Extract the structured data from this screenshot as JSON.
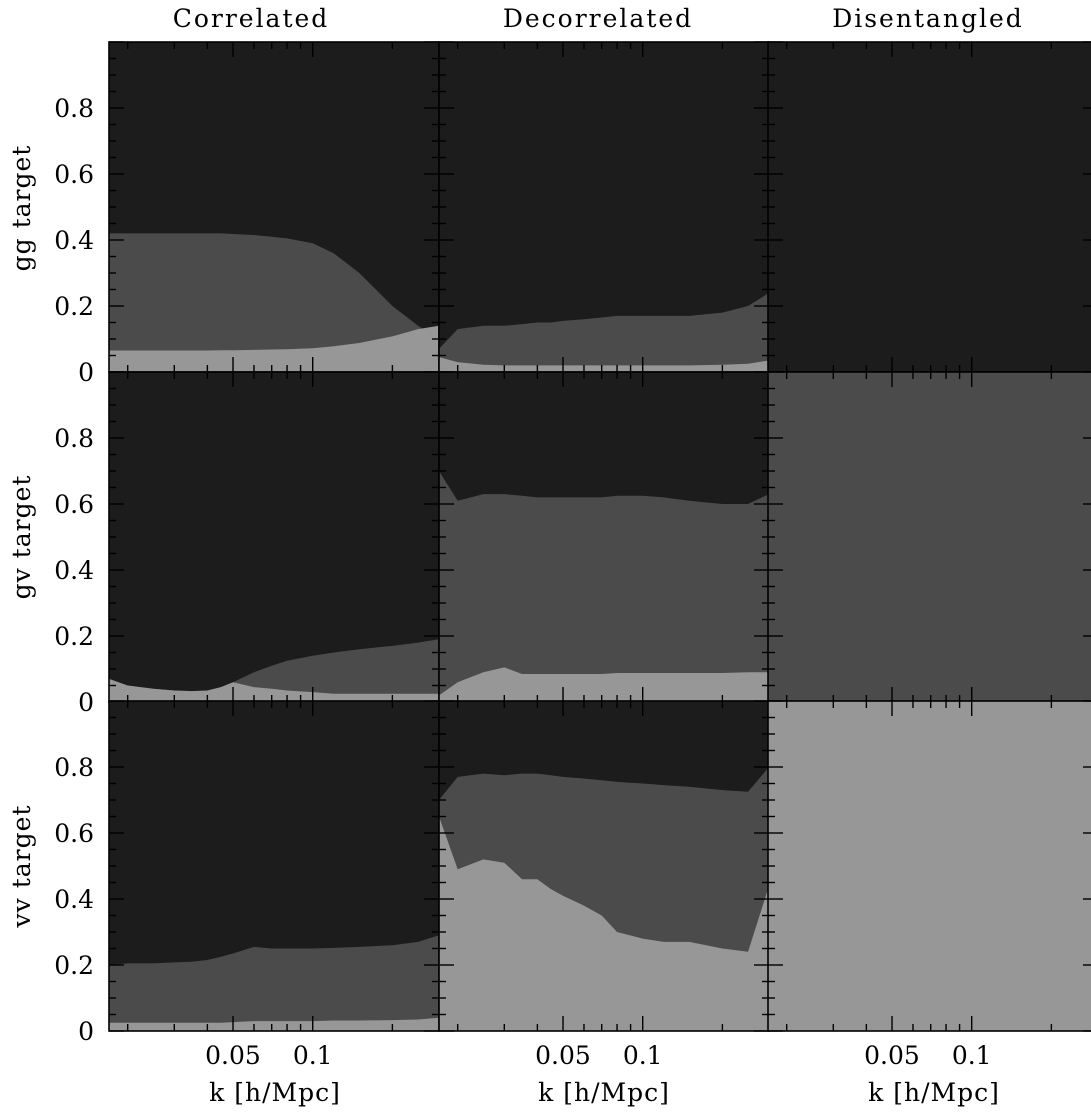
{
  "colors": {
    "dark": "#1c1c1c",
    "mid": "#4b4b4b",
    "light": "#979797",
    "frame": "#000000"
  },
  "figure": {
    "column_titles": [
      "Correlated",
      "Decorrelated",
      "Disentangled"
    ],
    "row_labels": [
      "gg target",
      "gv target",
      "vv target"
    ],
    "x_axis_label": "k [h/Mpc]",
    "x_tick_labels": [
      "0.05",
      "0.1"
    ],
    "y_tick_labels": [
      "0",
      "0.2",
      "0.4",
      "0.6",
      "0.8"
    ]
  },
  "chart_data": {
    "type": "area",
    "description_of_layout": "3x3 grid of stacked area panels; rows = target, columns = method",
    "x_scale": "log",
    "xlim": [
      0.017,
      0.3
    ],
    "ylim": [
      0,
      1
    ],
    "x_ticks_labeled": [
      0.05,
      0.1
    ],
    "y_ticks_labeled": [
      0,
      0.2,
      0.4,
      0.6,
      0.8
    ],
    "x": [
      0.017,
      0.02,
      0.025,
      0.03,
      0.035,
      0.04,
      0.045,
      0.05,
      0.06,
      0.07,
      0.08,
      0.1,
      0.12,
      0.15,
      0.2,
      0.25,
      0.3
    ],
    "panels": [
      {
        "row": "gg target",
        "column": "Correlated",
        "light_top": [
          0.065,
          0.065,
          0.065,
          0.065,
          0.065,
          0.065,
          0.066,
          0.066,
          0.067,
          0.068,
          0.069,
          0.072,
          0.078,
          0.088,
          0.108,
          0.13,
          0.14
        ],
        "mid_top": [
          0.42,
          0.42,
          0.42,
          0.42,
          0.42,
          0.42,
          0.42,
          0.418,
          0.415,
          0.41,
          0.405,
          0.39,
          0.36,
          0.3,
          0.2,
          0.14,
          0.1
        ]
      },
      {
        "row": "gg target",
        "column": "Decorrelated",
        "light_top": [
          0.045,
          0.03,
          0.022,
          0.02,
          0.02,
          0.02,
          0.02,
          0.02,
          0.02,
          0.02,
          0.02,
          0.02,
          0.02,
          0.02,
          0.022,
          0.025,
          0.035
        ],
        "mid_top": [
          0.07,
          0.13,
          0.14,
          0.14,
          0.145,
          0.15,
          0.15,
          0.155,
          0.16,
          0.165,
          0.17,
          0.17,
          0.17,
          0.17,
          0.18,
          0.2,
          0.24
        ]
      },
      {
        "row": "gg target",
        "column": "Disentangled",
        "light_top": [
          0,
          0,
          0,
          0,
          0,
          0,
          0,
          0,
          0,
          0,
          0,
          0,
          0,
          0,
          0,
          0,
          0
        ],
        "mid_top": [
          0,
          0,
          0,
          0,
          0,
          0,
          0,
          0,
          0,
          0,
          0,
          0,
          0,
          0,
          0,
          0,
          0
        ]
      },
      {
        "row": "gv target",
        "column": "Correlated",
        "light_top": [
          0.07,
          0.05,
          0.04,
          0.035,
          0.033,
          0.035,
          0.045,
          0.06,
          0.045,
          0.04,
          0.035,
          0.03,
          0.025,
          0.025,
          0.025,
          0.025,
          0.025
        ],
        "mid_top": [
          0.07,
          0.05,
          0.04,
          0.035,
          0.033,
          0.035,
          0.045,
          0.06,
          0.09,
          0.11,
          0.125,
          0.14,
          0.15,
          0.16,
          0.17,
          0.18,
          0.19
        ]
      },
      {
        "row": "gv target",
        "column": "Decorrelated",
        "light_top": [
          0.02,
          0.06,
          0.09,
          0.105,
          0.085,
          0.085,
          0.085,
          0.085,
          0.085,
          0.085,
          0.088,
          0.088,
          0.088,
          0.088,
          0.088,
          0.09,
          0.09
        ],
        "mid_top": [
          0.7,
          0.61,
          0.63,
          0.63,
          0.625,
          0.62,
          0.62,
          0.62,
          0.62,
          0.62,
          0.625,
          0.625,
          0.62,
          0.61,
          0.6,
          0.6,
          0.63
        ]
      },
      {
        "row": "gv target",
        "column": "Disentangled",
        "light_top": [
          0,
          0,
          0,
          0,
          0,
          0,
          0,
          0,
          0,
          0,
          0,
          0,
          0,
          0,
          0,
          0,
          0
        ],
        "mid_top": [
          1,
          1,
          1,
          1,
          1,
          1,
          1,
          1,
          1,
          1,
          1,
          1,
          1,
          1,
          1,
          1,
          1
        ]
      },
      {
        "row": "vv target",
        "column": "Correlated",
        "light_top": [
          0.025,
          0.025,
          0.025,
          0.025,
          0.025,
          0.025,
          0.025,
          0.027,
          0.03,
          0.03,
          0.03,
          0.03,
          0.032,
          0.032,
          0.033,
          0.035,
          0.04
        ],
        "mid_top": [
          0.2,
          0.205,
          0.205,
          0.208,
          0.21,
          0.215,
          0.225,
          0.235,
          0.255,
          0.25,
          0.25,
          0.25,
          0.252,
          0.255,
          0.26,
          0.27,
          0.29
        ]
      },
      {
        "row": "vv target",
        "column": "Decorrelated",
        "light_top": [
          0.65,
          0.49,
          0.52,
          0.51,
          0.46,
          0.46,
          0.43,
          0.41,
          0.38,
          0.35,
          0.3,
          0.28,
          0.27,
          0.27,
          0.25,
          0.24,
          0.44
        ],
        "mid_top": [
          0.7,
          0.77,
          0.78,
          0.775,
          0.78,
          0.78,
          0.775,
          0.77,
          0.765,
          0.76,
          0.755,
          0.75,
          0.745,
          0.74,
          0.73,
          0.725,
          0.8
        ]
      },
      {
        "row": "vv target",
        "column": "Disentangled",
        "light_top": [
          1,
          1,
          1,
          1,
          1,
          1,
          1,
          1,
          1,
          1,
          1,
          1,
          1,
          1,
          1,
          1,
          1
        ],
        "mid_top": [
          1,
          1,
          1,
          1,
          1,
          1,
          1,
          1,
          1,
          1,
          1,
          1,
          1,
          1,
          1,
          1,
          1
        ]
      }
    ]
  }
}
